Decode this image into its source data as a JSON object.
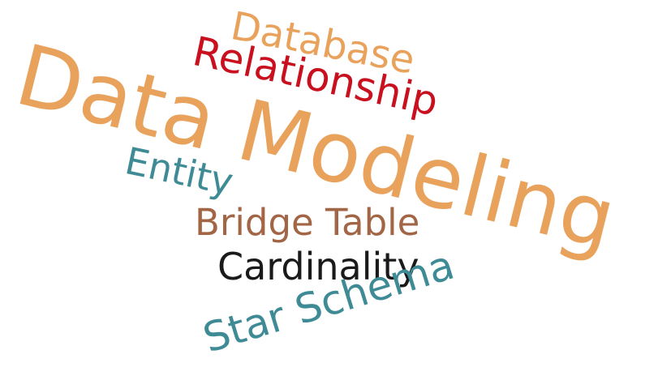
{
  "words": [
    {
      "key": "database",
      "text": "Database",
      "color": "#e8a25c"
    },
    {
      "key": "relationship",
      "text": "Relationship",
      "color": "#c8101e"
    },
    {
      "key": "data_modeling",
      "text": "Data Modeling",
      "color": "#e8a25c"
    },
    {
      "key": "entity",
      "text": "Entity",
      "color": "#3f8b95"
    },
    {
      "key": "bridge_table",
      "text": "Bridge Table",
      "color": "#a26647"
    },
    {
      "key": "cardinality",
      "text": "Cardinality",
      "color": "#1a1a1a"
    },
    {
      "key": "star_schema",
      "text": "Star Schema",
      "color": "#3f8b95"
    }
  ]
}
